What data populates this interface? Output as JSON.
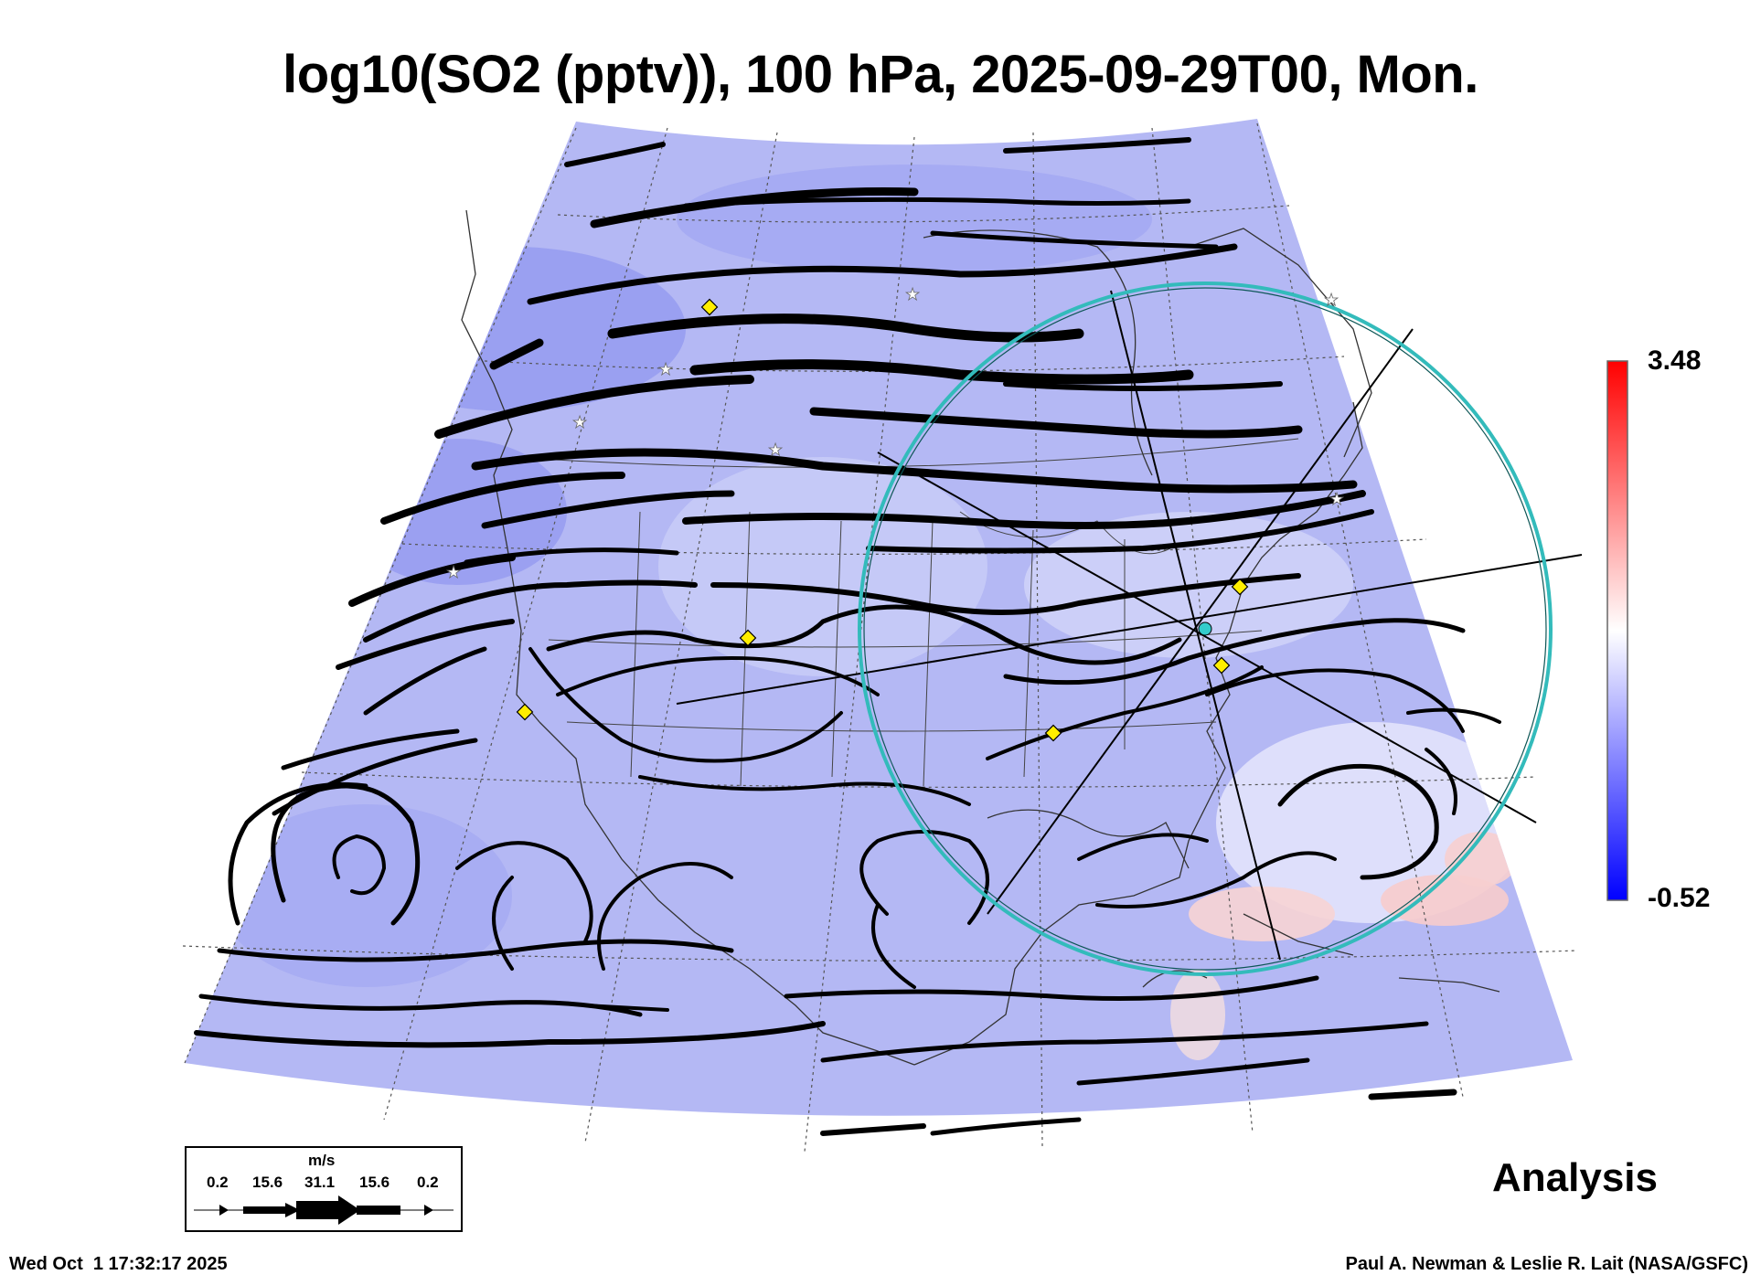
{
  "title": "log10(SO2 (pptv)), 100 hPa, 2025-09-29T00, Mon.",
  "colorbar": {
    "max_label": "3.48",
    "min_label": "-0.52",
    "colors": [
      "#0000ff",
      "#8080ff",
      "#ffffff",
      "#ff8080",
      "#ff0000"
    ]
  },
  "wind_legend": {
    "unit": "m/s",
    "ticks": [
      "0.2",
      "15.6",
      "31.1",
      "15.6",
      "0.2"
    ]
  },
  "label_analysis": "Analysis",
  "timestamp": "Wed Oct  1 17:32:17 2025",
  "credit": "Paul A. Newman & Leslie R. Lait (NASA/GSFC)",
  "overlay": {
    "range_ring_color": "#33bbbb",
    "marker_diamond_color": "#ffee00",
    "marker_star_color": "#ffffff"
  }
}
